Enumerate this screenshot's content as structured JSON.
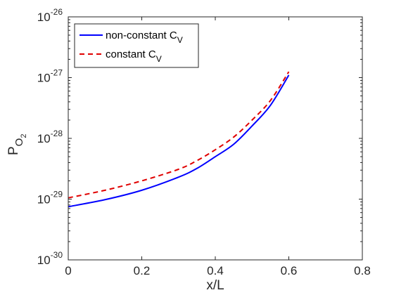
{
  "chart_data": {
    "type": "line",
    "xlabel": "x/L",
    "ylabel": {
      "main": "P",
      "sub": "O",
      "subsub": "2"
    },
    "xlim": [
      0,
      0.8
    ],
    "ylim_exponent": [
      -30,
      -26
    ],
    "yscale": "log",
    "grid": false,
    "legend_position": "top-left",
    "x_ticks": [
      "0",
      "0.2",
      "0.4",
      "0.6",
      "0.8"
    ],
    "y_ticks": [
      {
        "base": "10",
        "exp": "-30"
      },
      {
        "base": "10",
        "exp": "-29"
      },
      {
        "base": "10",
        "exp": "-28"
      },
      {
        "base": "10",
        "exp": "-27"
      },
      {
        "base": "10",
        "exp": "-26"
      }
    ],
    "series": [
      {
        "name": {
          "main": "non-constant C",
          "sub": "V"
        },
        "color": "#0000ff",
        "dash": "solid",
        "x": [
          0,
          0.1,
          0.2,
          0.3,
          0.35,
          0.4,
          0.45,
          0.5,
          0.55,
          0.6
        ],
        "y": [
          7.5e-30,
          9.8e-30,
          1.4e-29,
          2.3e-29,
          3.2e-29,
          5e-29,
          8e-29,
          1.6e-28,
          3.5e-28,
          1.1e-27
        ]
      },
      {
        "name": {
          "main": "constant C",
          "sub": "V"
        },
        "color": "#e00000",
        "dash": "dashed",
        "x": [
          0,
          0.1,
          0.2,
          0.3,
          0.35,
          0.4,
          0.45,
          0.5,
          0.55,
          0.6
        ],
        "y": [
          1.05e-29,
          1.4e-29,
          2e-29,
          3.1e-29,
          4.3e-29,
          6.5e-29,
          1.05e-28,
          2e-28,
          4.2e-28,
          1.25e-27
        ]
      }
    ]
  }
}
